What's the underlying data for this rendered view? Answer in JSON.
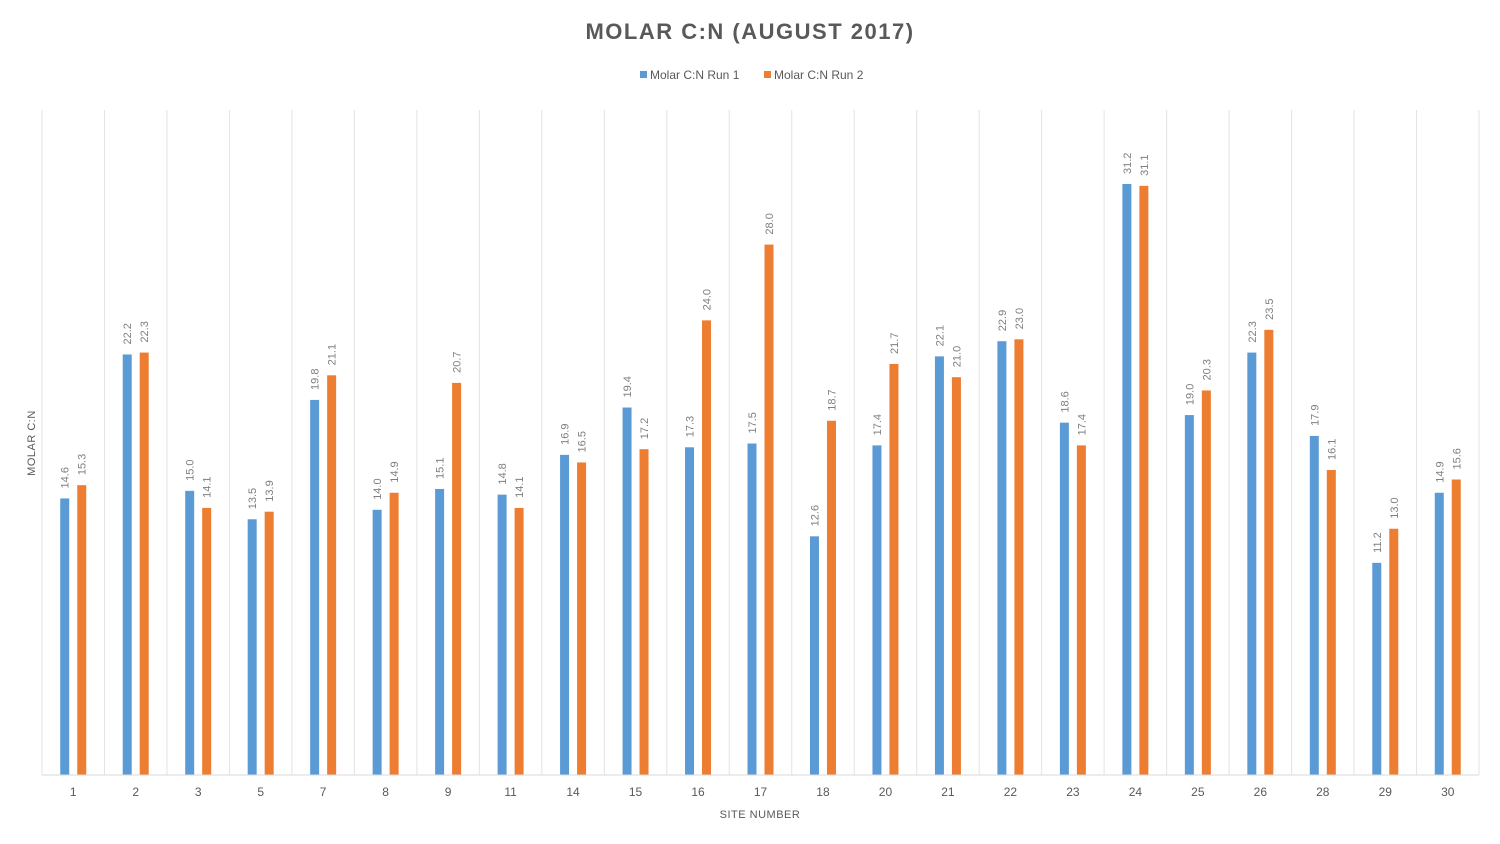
{
  "chart_data": {
    "type": "bar",
    "title": "MOLAR C:N (AUGUST 2017)",
    "xlabel": "SITE NUMBER",
    "ylabel": "MOLAR C:N",
    "ylim": [
      0,
      35
    ],
    "grid": "vertical category separators",
    "legend_position": "top-center",
    "categories": [
      "1",
      "2",
      "3",
      "5",
      "7",
      "8",
      "9",
      "11",
      "14",
      "15",
      "16",
      "17",
      "18",
      "20",
      "21",
      "22",
      "23",
      "24",
      "25",
      "26",
      "28",
      "29",
      "30"
    ],
    "series": [
      {
        "name": "Molar C:N Run 1",
        "color": "#5b9bd5",
        "values": [
          14.6,
          22.2,
          15.0,
          13.5,
          19.8,
          14.0,
          15.1,
          14.8,
          16.9,
          19.4,
          17.3,
          17.5,
          12.6,
          17.4,
          22.1,
          22.9,
          18.6,
          31.2,
          19.0,
          22.3,
          17.9,
          11.2,
          14.9
        ],
        "labels": [
          "14.6",
          "22.2",
          "15.0",
          "13.5",
          "19.8",
          "14.0",
          "15.1",
          "14.8",
          "16.9",
          "19.4",
          "17.3",
          "17.5",
          "12.6",
          "17.4",
          "22.1",
          "22.9",
          "18.6",
          "31.2",
          "19.0",
          "22.3",
          "17.9",
          "11.2",
          "14.9"
        ]
      },
      {
        "name": "Molar C:N Run 2",
        "color": "#ed7d31",
        "values": [
          15.3,
          22.3,
          14.1,
          13.9,
          21.1,
          14.9,
          20.7,
          14.1,
          16.5,
          17.2,
          24.0,
          28.0,
          18.7,
          21.7,
          21.0,
          23.0,
          17.4,
          31.1,
          20.3,
          23.5,
          16.1,
          13.0,
          15.6
        ],
        "labels": [
          "15.3",
          "22.3",
          "14.1",
          "13.9",
          "21.1",
          "14.9",
          "20.7",
          "14.1",
          "16.5",
          "17.2",
          "24.0",
          "28.0",
          "18.7",
          "21.7",
          "21.0",
          "23.0",
          "17.4",
          "31.1",
          "20.3",
          "23.5",
          "16.1",
          "13.0",
          "15.6"
        ]
      }
    ]
  }
}
